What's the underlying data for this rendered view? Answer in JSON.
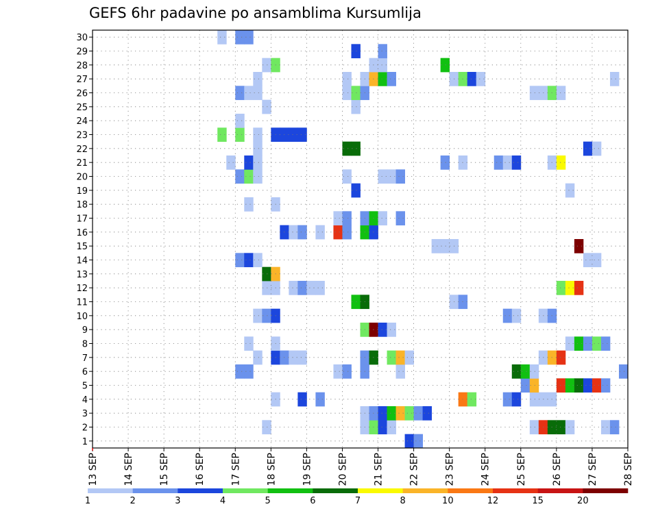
{
  "chart_data": {
    "type": "heatmap",
    "title": "GEFS 6hr padavine po ansamblima Kursumlija",
    "x_ticks": [
      "13 SEP",
      "14 SEP",
      "15 SEP",
      "16 SEP",
      "17 SEP",
      "18 SEP",
      "19 SEP",
      "20 SEP",
      "21 SEP",
      "22 SEP",
      "23 SEP",
      "24 SEP",
      "25 SEP",
      "26 SEP",
      "27 SEP",
      "28 SEP"
    ],
    "y_ticks": [
      "1",
      "2",
      "3",
      "4",
      "5",
      "6",
      "7",
      "8",
      "9",
      "10",
      "11",
      "12",
      "13",
      "14",
      "15",
      "16",
      "17",
      "18",
      "19",
      "20",
      "21",
      "22",
      "23",
      "24",
      "25",
      "26",
      "27",
      "28",
      "29",
      "30"
    ],
    "steps_per_day": 4,
    "grid": true,
    "legend": {
      "position": "bottom",
      "labels": [
        "1",
        "2",
        "3",
        "4",
        "5",
        "6",
        "7",
        "8",
        "10",
        "12",
        "15",
        "20"
      ],
      "colors": [
        "#b3c8f5",
        "#6b92ec",
        "#1c46dd",
        "#70e860",
        "#11c011",
        "#096c09",
        "#fafa00",
        "#fab428",
        "#fa7814",
        "#e63214",
        "#c81414",
        "#7d0000"
      ]
    },
    "class_colors": [
      "#ffffff",
      "#b3c8f5",
      "#6b92ec",
      "#1c46dd",
      "#70e860",
      "#11c011",
      "#096c09",
      "#fafa00",
      "#fab428",
      "#fa7814",
      "#e63214",
      "#c81414",
      "#7d0000"
    ],
    "cells": [
      [
        1,
        21.75,
        3
      ],
      [
        1,
        22,
        2
      ],
      [
        2,
        17.75,
        1
      ],
      [
        2,
        20.5,
        1
      ],
      [
        2,
        20.75,
        4
      ],
      [
        2,
        21,
        3
      ],
      [
        2,
        21.25,
        1
      ],
      [
        2,
        25.25,
        1
      ],
      [
        2,
        25.5,
        10
      ],
      [
        2,
        25.75,
        6
      ],
      [
        2,
        26,
        6
      ],
      [
        2,
        26.25,
        1
      ],
      [
        2,
        27.25,
        1
      ],
      [
        2,
        27.5,
        2
      ],
      [
        3,
        20.5,
        1
      ],
      [
        3,
        20.75,
        2
      ],
      [
        3,
        21,
        3
      ],
      [
        3,
        21.25,
        5
      ],
      [
        3,
        21.5,
        8
      ],
      [
        3,
        21.75,
        4
      ],
      [
        3,
        22,
        2
      ],
      [
        3,
        22.25,
        3
      ],
      [
        4,
        18,
        1
      ],
      [
        4,
        18.75,
        3
      ],
      [
        4,
        19.25,
        2
      ],
      [
        4,
        23.25,
        9
      ],
      [
        4,
        23.5,
        4
      ],
      [
        4,
        24.5,
        2
      ],
      [
        4,
        24.75,
        3
      ],
      [
        4,
        25.25,
        1
      ],
      [
        4,
        25.5,
        1
      ],
      [
        4,
        25.75,
        1
      ],
      [
        5,
        25,
        2
      ],
      [
        5,
        25.25,
        8
      ],
      [
        5,
        26,
        10
      ],
      [
        5,
        26.25,
        5
      ],
      [
        5,
        26.5,
        6
      ],
      [
        5,
        26.75,
        3
      ],
      [
        5,
        27,
        10
      ],
      [
        5,
        27.25,
        2
      ],
      [
        6,
        17,
        2
      ],
      [
        6,
        17.25,
        2
      ],
      [
        6,
        19.75,
        1
      ],
      [
        6,
        20,
        2
      ],
      [
        6,
        20.5,
        2
      ],
      [
        6,
        21.5,
        1
      ],
      [
        6,
        24.75,
        6
      ],
      [
        6,
        25,
        5
      ],
      [
        6,
        25.25,
        1
      ],
      [
        6,
        27.75,
        2
      ],
      [
        7,
        17.5,
        1
      ],
      [
        7,
        18,
        3
      ],
      [
        7,
        18.25,
        2
      ],
      [
        7,
        18.5,
        1
      ],
      [
        7,
        18.75,
        1
      ],
      [
        7,
        20.5,
        2
      ],
      [
        7,
        20.75,
        6
      ],
      [
        7,
        21.25,
        4
      ],
      [
        7,
        21.5,
        8
      ],
      [
        7,
        21.75,
        1
      ],
      [
        7,
        25.5,
        1
      ],
      [
        7,
        25.75,
        8
      ],
      [
        7,
        26,
        10
      ],
      [
        8,
        17.25,
        1
      ],
      [
        8,
        18,
        1
      ],
      [
        8,
        26.25,
        1
      ],
      [
        8,
        26.5,
        5
      ],
      [
        8,
        26.75,
        2
      ],
      [
        8,
        27,
        4
      ],
      [
        8,
        27.25,
        2
      ],
      [
        9,
        20.5,
        4
      ],
      [
        9,
        20.75,
        12
      ],
      [
        9,
        21,
        3
      ],
      [
        9,
        21.25,
        1
      ],
      [
        10,
        17.5,
        1
      ],
      [
        10,
        17.75,
        2
      ],
      [
        10,
        18,
        3
      ],
      [
        10,
        24.5,
        2
      ],
      [
        10,
        24.75,
        1
      ],
      [
        10,
        25.5,
        1
      ],
      [
        10,
        25.75,
        2
      ],
      [
        11,
        20.25,
        5
      ],
      [
        11,
        20.5,
        6
      ],
      [
        11,
        23,
        1
      ],
      [
        11,
        23.25,
        2
      ],
      [
        12,
        17.75,
        1
      ],
      [
        12,
        18,
        1
      ],
      [
        12,
        18.5,
        1
      ],
      [
        12,
        18.75,
        2
      ],
      [
        12,
        19,
        1
      ],
      [
        12,
        19.25,
        1
      ],
      [
        12,
        26,
        4
      ],
      [
        12,
        26.25,
        7
      ],
      [
        12,
        26.5,
        10
      ],
      [
        13,
        17.75,
        6
      ],
      [
        13,
        18,
        8
      ],
      [
        14,
        17,
        2
      ],
      [
        14,
        17.25,
        3
      ],
      [
        14,
        17.5,
        1
      ],
      [
        14,
        26.75,
        1
      ],
      [
        14,
        27,
        1
      ],
      [
        15,
        22.5,
        1
      ],
      [
        15,
        22.75,
        1
      ],
      [
        15,
        23,
        1
      ],
      [
        15,
        26.5,
        12
      ],
      [
        16,
        18.25,
        3
      ],
      [
        16,
        18.5,
        1
      ],
      [
        16,
        18.75,
        2
      ],
      [
        16,
        19.25,
        1
      ],
      [
        16,
        19.75,
        10
      ],
      [
        16,
        20,
        2
      ],
      [
        16,
        20.5,
        5
      ],
      [
        16,
        20.75,
        3
      ],
      [
        17,
        19.75,
        1
      ],
      [
        17,
        20,
        2
      ],
      [
        17,
        20.5,
        2
      ],
      [
        17,
        20.75,
        5
      ],
      [
        17,
        21,
        1
      ],
      [
        17,
        21.5,
        2
      ],
      [
        18,
        17.25,
        1
      ],
      [
        18,
        18,
        1
      ],
      [
        19,
        20.25,
        3
      ],
      [
        19,
        26.25,
        1
      ],
      [
        20,
        17,
        2
      ],
      [
        20,
        17.25,
        4
      ],
      [
        20,
        17.5,
        1
      ],
      [
        20,
        20,
        1
      ],
      [
        20,
        21,
        1
      ],
      [
        20,
        21.25,
        1
      ],
      [
        20,
        21.5,
        2
      ],
      [
        21,
        16.75,
        1
      ],
      [
        21,
        17.25,
        3
      ],
      [
        21,
        17.5,
        1
      ],
      [
        21,
        22.75,
        2
      ],
      [
        21,
        23.25,
        1
      ],
      [
        21,
        24.25,
        2
      ],
      [
        21,
        24.5,
        1
      ],
      [
        21,
        24.75,
        3
      ],
      [
        21,
        25.75,
        1
      ],
      [
        21,
        26,
        7
      ],
      [
        22,
        17.5,
        1
      ],
      [
        22,
        20,
        6
      ],
      [
        22,
        20.25,
        6
      ],
      [
        22,
        26.75,
        3
      ],
      [
        22,
        27,
        1
      ],
      [
        23,
        16.5,
        4
      ],
      [
        23,
        17,
        4
      ],
      [
        23,
        17.5,
        1
      ],
      [
        23,
        18,
        3
      ],
      [
        23,
        18.25,
        3
      ],
      [
        23,
        18.5,
        3
      ],
      [
        23,
        18.75,
        3
      ],
      [
        24,
        17,
        1
      ],
      [
        25,
        17.75,
        1
      ],
      [
        25,
        20.25,
        1
      ],
      [
        26,
        17,
        2
      ],
      [
        26,
        17.25,
        1
      ],
      [
        26,
        17.5,
        1
      ],
      [
        26,
        20,
        1
      ],
      [
        26,
        20.25,
        4
      ],
      [
        26,
        20.5,
        2
      ],
      [
        26,
        25.25,
        1
      ],
      [
        26,
        25.5,
        1
      ],
      [
        26,
        25.75,
        4
      ],
      [
        26,
        26,
        1
      ],
      [
        27,
        17.5,
        1
      ],
      [
        27,
        20,
        1
      ],
      [
        27,
        20.5,
        1
      ],
      [
        27,
        20.75,
        8
      ],
      [
        27,
        21,
        5
      ],
      [
        27,
        21.25,
        2
      ],
      [
        27,
        23,
        1
      ],
      [
        27,
        23.25,
        4
      ],
      [
        27,
        23.5,
        3
      ],
      [
        27,
        23.75,
        1
      ],
      [
        27,
        27.5,
        1
      ],
      [
        28,
        17.75,
        1
      ],
      [
        28,
        18,
        4
      ],
      [
        28,
        20.75,
        1
      ],
      [
        28,
        21,
        1
      ],
      [
        28,
        22.75,
        5
      ],
      [
        29,
        20.25,
        3
      ],
      [
        29,
        21,
        2
      ],
      [
        30,
        16.5,
        1
      ],
      [
        30,
        17,
        2
      ],
      [
        30,
        17.25,
        2
      ]
    ]
  }
}
